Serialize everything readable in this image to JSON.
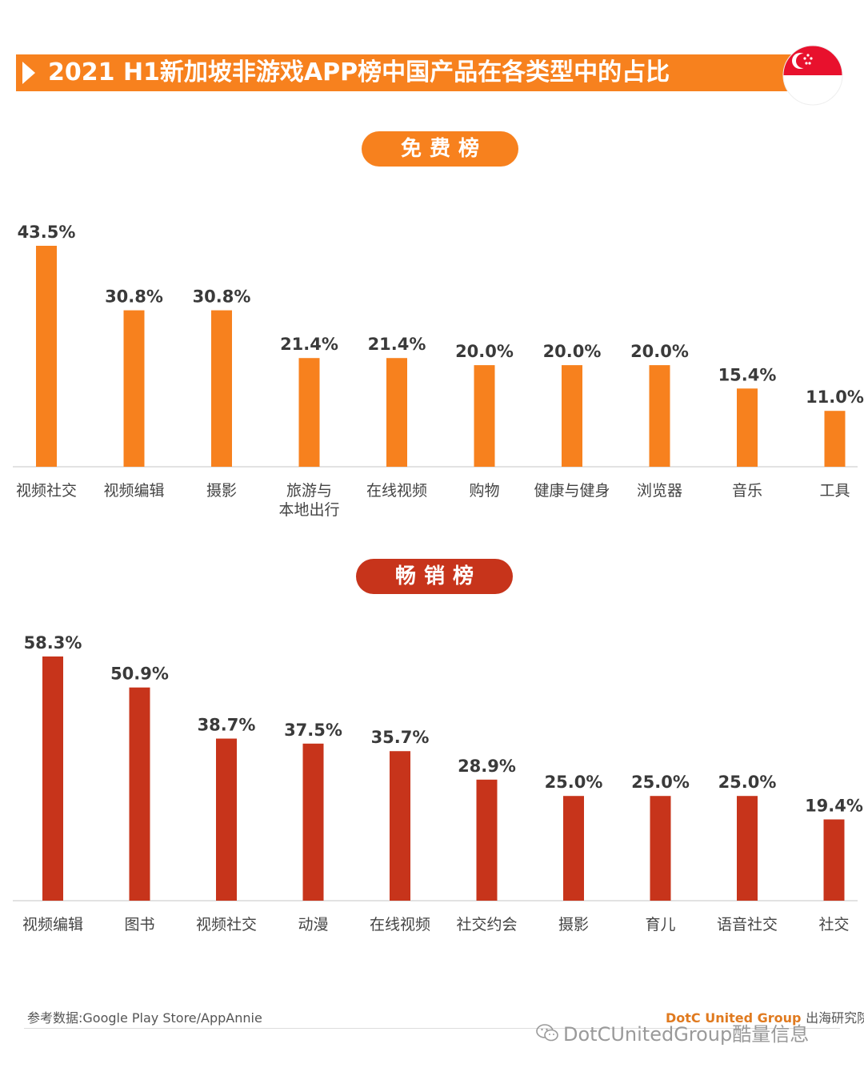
{
  "title": "2021 H1新加坡非游戏APP榜中国产品在各类型中的占比",
  "colors": {
    "free_bar": "#f7811e",
    "gross_bar": "#c7341b",
    "title_bg": "#f7811e"
  },
  "flag_icon": "singapore-flag-icon",
  "chart_data": [
    {
      "type": "bar",
      "title": "免费榜",
      "categories": [
        "视频社交",
        "视频编辑",
        "摄影",
        "旅游与\n本地出行",
        "在线视频",
        "购物",
        "健康与健身",
        "浏览器",
        "音乐",
        "工具"
      ],
      "values": [
        43.5,
        30.8,
        30.8,
        21.4,
        21.4,
        20.0,
        20.0,
        20.0,
        15.4,
        11.0
      ],
      "value_labels": [
        "43.5%",
        "30.8%",
        "30.8%",
        "21.4%",
        "21.4%",
        "20.0%",
        "20.0%",
        "20.0%",
        "15.4%",
        "11.0%"
      ],
      "xlabel": "",
      "ylabel": "",
      "ylim": [
        0,
        43.5
      ],
      "grid": false
    },
    {
      "type": "bar",
      "title": "畅销榜",
      "categories": [
        "视频编辑",
        "图书",
        "视频社交",
        "动漫",
        "在线视频",
        "社交约会",
        "摄影",
        "育儿",
        "语音社交",
        "社交"
      ],
      "values": [
        58.3,
        50.9,
        38.7,
        37.5,
        35.7,
        28.9,
        25.0,
        25.0,
        25.0,
        19.4
      ],
      "value_labels": [
        "58.3%",
        "50.9%",
        "38.7%",
        "37.5%",
        "35.7%",
        "28.9%",
        "25.0%",
        "25.0%",
        "25.0%",
        "19.4%"
      ],
      "xlabel": "",
      "ylabel": "",
      "ylim": [
        0,
        58.3
      ],
      "grid": false
    }
  ],
  "footer": {
    "source": "参考数据:Google Play Store/AppAnnie",
    "brand_en": "DotC United Group",
    "brand_cn": "出海研究院",
    "wechat_account": "DotCUnitedGroup酷量信息"
  }
}
